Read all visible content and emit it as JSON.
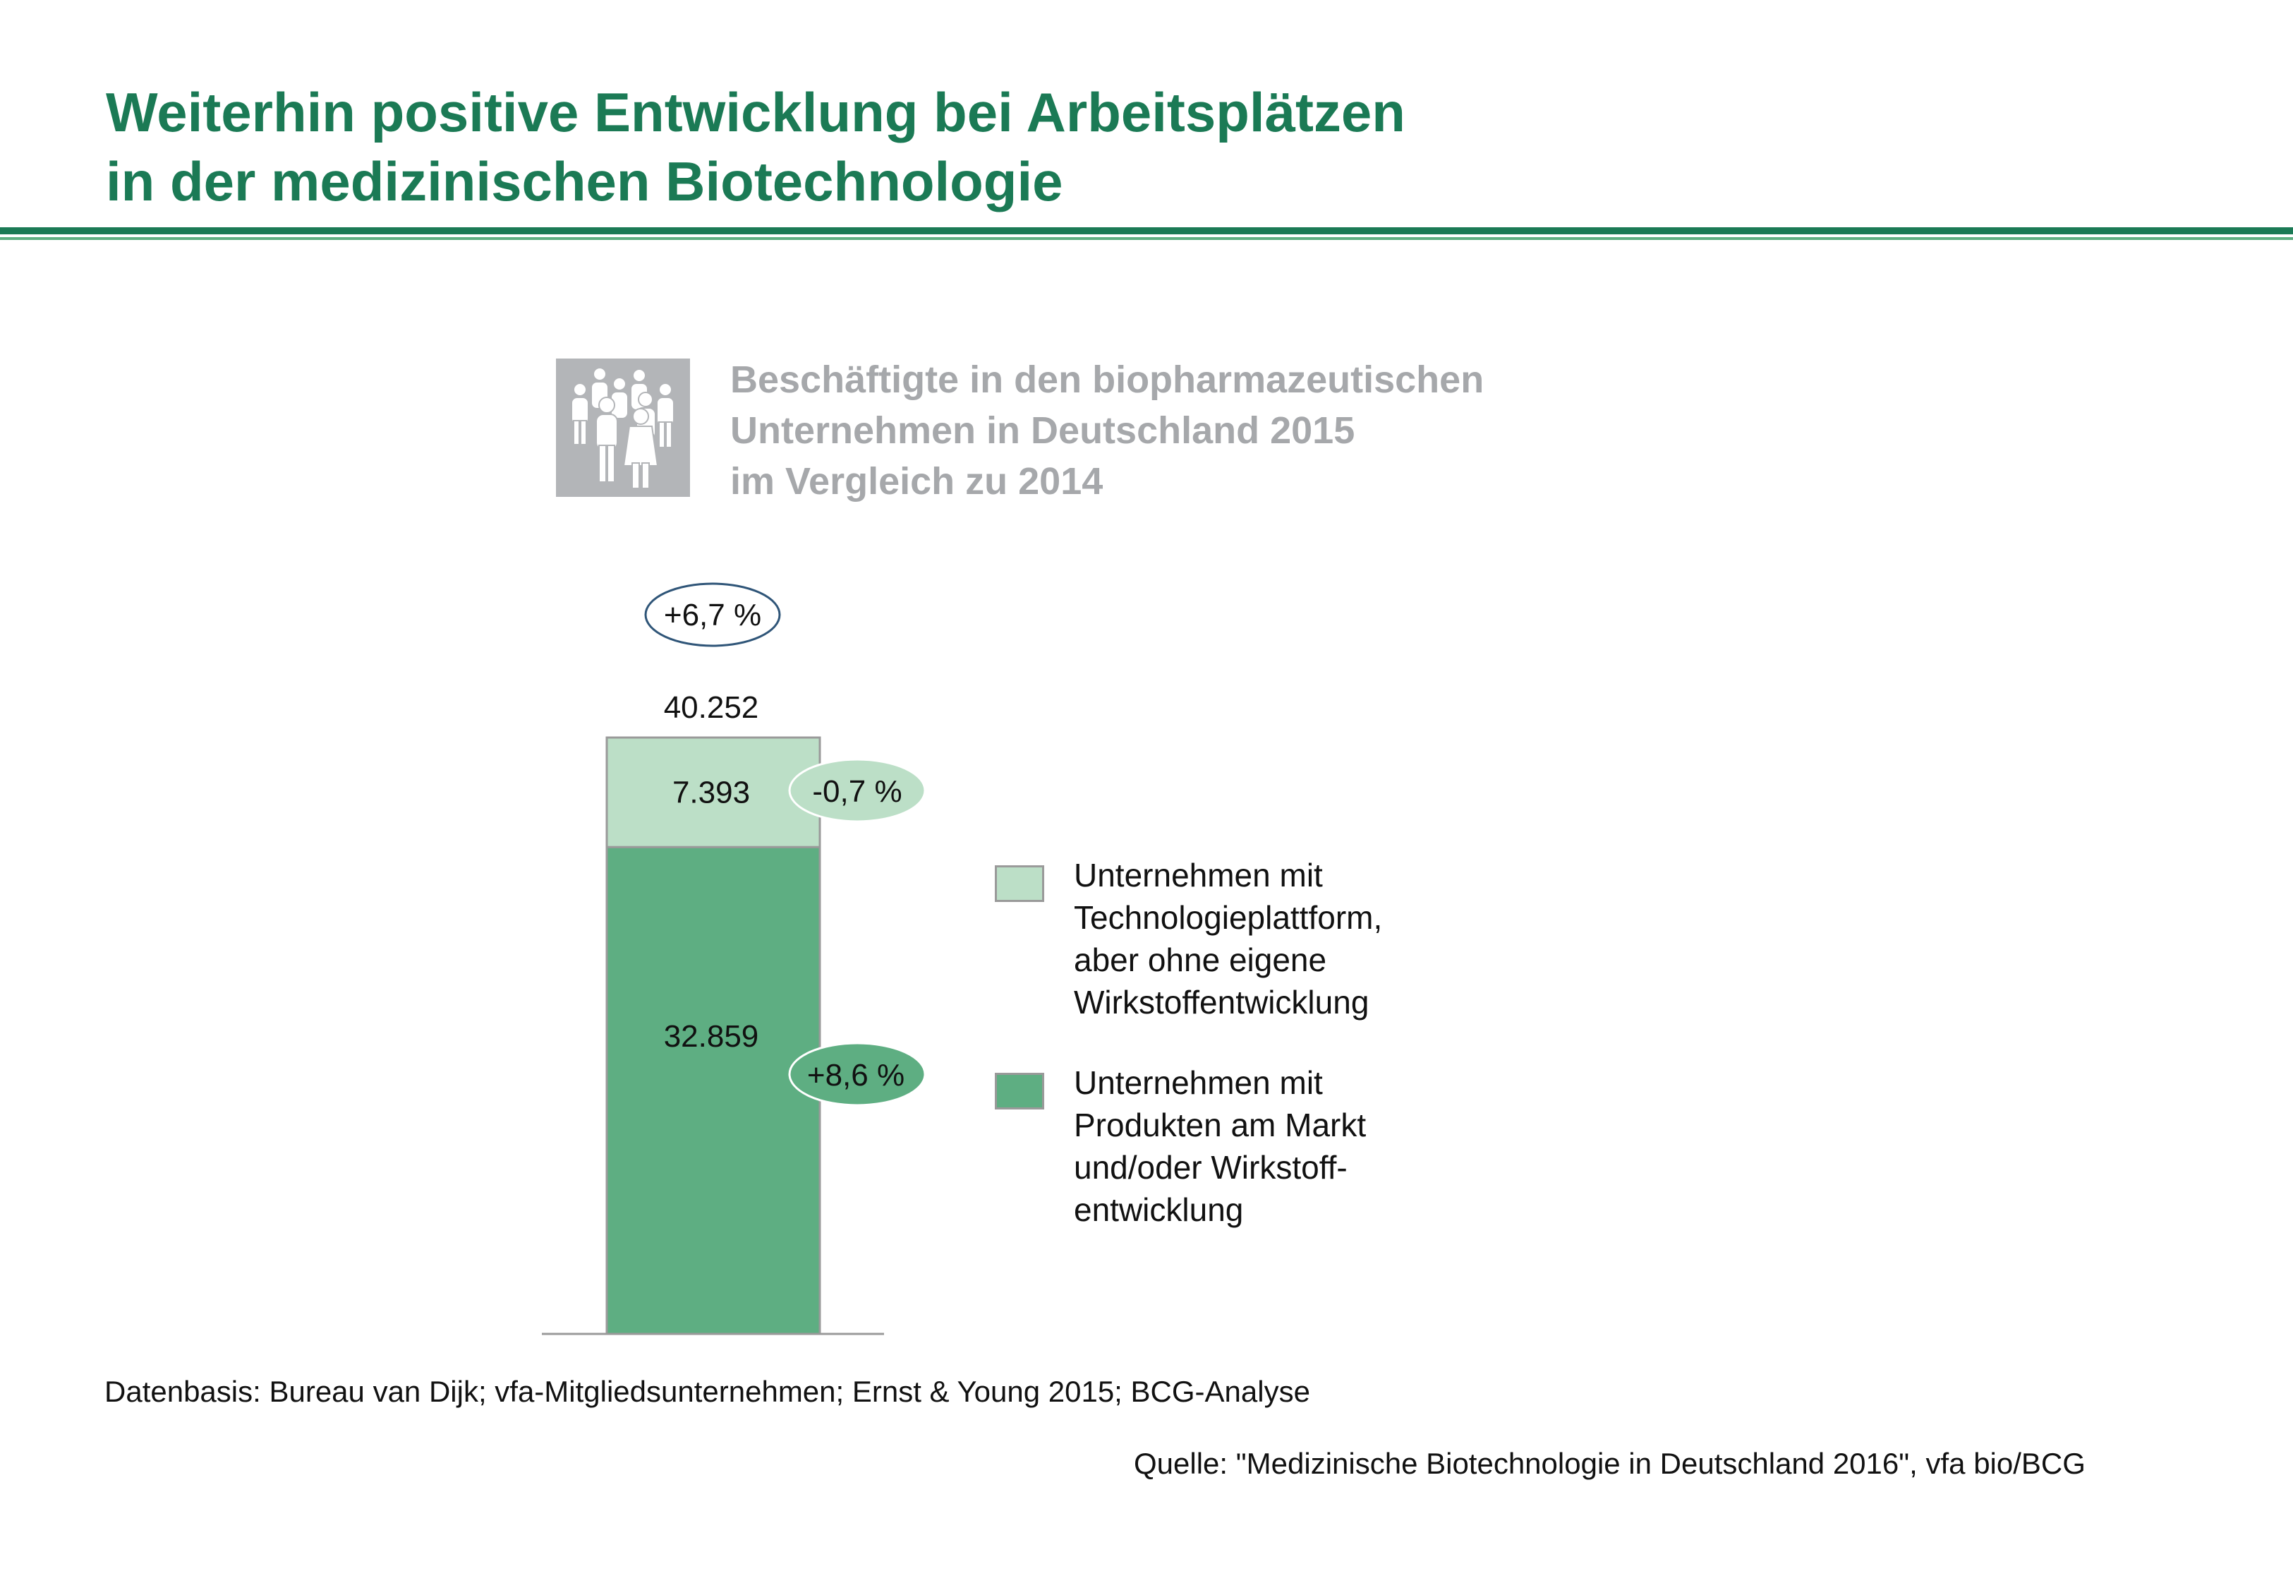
{
  "header": {
    "title_lines": [
      "Weiterhin positive Entwicklung bei Arbeitsplätzen",
      "in der medizinischen Biotechnologie"
    ],
    "icon": "people-group-icon"
  },
  "chart_data": {
    "type": "bar",
    "stacked": true,
    "title_lines": [
      "Beschäftigte in den biopharmazeutischen",
      "Unternehmen in Deutschland 2015",
      "im Vergleich zu 2014"
    ],
    "total_label": "40.252",
    "total": 40252,
    "total_change_label": "+6,7 %",
    "series": [
      {
        "name_lines": [
          "Unternehmen mit",
          "Produkten am Markt",
          "und/oder Wirkstoff-",
          "entwicklung"
        ],
        "value": 32859,
        "value_label": "32.859",
        "change_label": "+8,6 %",
        "color": "#5eae82"
      },
      {
        "name_lines": [
          "Unternehmen mit",
          "Technologieplattform,",
          "aber ohne eigene",
          "Wirkstoffentwicklung"
        ],
        "value": 7393,
        "value_label": "7.393",
        "change_label": "-0,7 %",
        "color": "#bcdfc7"
      }
    ],
    "legend_position": "right",
    "grid": false,
    "colors": {
      "bubble_total_border": "#2f5578",
      "bubble_light_fill": "#bcdfc7",
      "bubble_dark_fill": "#5eae82",
      "axis": "#9a9a9a"
    }
  },
  "footer": {
    "data_basis": "Datenbasis: Bureau van Dijk; vfa-Mitgliedsunternehmen; Ernst & Young 2015; BCG-Analyse",
    "source": "Quelle: \"Medizinische Biotechnologie in Deutschland 2016\", vfa bio/BCG"
  }
}
